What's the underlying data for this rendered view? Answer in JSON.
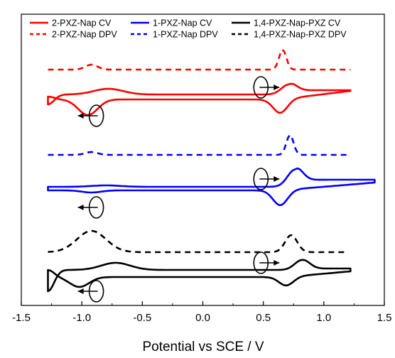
{
  "chart_data": {
    "type": "line",
    "title": "",
    "xlabel": "Potential vs SCE / V",
    "ylabel": "",
    "xlim": [
      -1.5,
      1.5
    ],
    "x_ticks": [
      "-1.5",
      "-1.0",
      "-0.5",
      "0.0",
      "0.5",
      "1.0",
      "1.5"
    ],
    "grid": false,
    "legend_position": "top",
    "y_axis_values_shown": false,
    "series": [
      {
        "name": "2-PXZ-Nap CV",
        "color": "#ff0000",
        "style": "solid",
        "x_range": [
          -1.28,
          1.22
        ],
        "features": {
          "oxidation_peak_x": 0.71,
          "reduction_peak_x": 0.64,
          "cathodic_peak_x": -0.95,
          "anodic_return_peak_x": -0.78
        }
      },
      {
        "name": "2-PXZ-Nap DPV",
        "color": "#ff0000",
        "style": "dashed",
        "x_range": [
          -1.28,
          1.22
        ],
        "features": {
          "peak_x": [
            -0.92,
            0.66
          ]
        }
      },
      {
        "name": "1-PXZ-Nap CV",
        "color": "#0000ff",
        "style": "solid",
        "x_range": [
          -1.28,
          1.42
        ],
        "features": {
          "oxidation_peak_x": 0.76,
          "reduction_peak_x": 0.64,
          "cathodic_peak_x": -0.92
        }
      },
      {
        "name": "1-PXZ-Nap DPV",
        "color": "#0000ff",
        "style": "dashed",
        "x_range": [
          -1.28,
          1.22
        ],
        "features": {
          "peak_x": [
            -0.92,
            0.72
          ]
        }
      },
      {
        "name": "1,4-PXZ-Nap-PXZ CV",
        "color": "#000000",
        "style": "solid",
        "x_range": [
          -1.28,
          1.22
        ],
        "features": {
          "oxidation_peak_x": 0.82,
          "reduction_peak_x": 0.69,
          "cathodic_peak_x": -1.02,
          "anodic_return_peak_x": -0.72
        }
      },
      {
        "name": "1,4-PXZ-Nap-PXZ DPV",
        "color": "#000000",
        "style": "dashed",
        "x_range": [
          -1.28,
          1.18
        ],
        "features": {
          "peak_x": [
            -0.92,
            0.73
          ]
        }
      }
    ],
    "annotations": [
      {
        "type": "scan-direction-arrow",
        "series": "2-PXZ-Nap CV",
        "direction": "right",
        "x": 0.48
      },
      {
        "type": "scan-direction-arrow",
        "series": "2-PXZ-Nap CV",
        "direction": "left",
        "x": -0.88
      },
      {
        "type": "scan-direction-arrow",
        "series": "1-PXZ-Nap CV",
        "direction": "right",
        "x": 0.48
      },
      {
        "type": "scan-direction-arrow",
        "series": "1-PXZ-Nap CV",
        "direction": "left",
        "x": -0.88
      },
      {
        "type": "scan-direction-arrow",
        "series": "1,4-PXZ-Nap-PXZ CV",
        "direction": "right",
        "x": 0.48
      },
      {
        "type": "scan-direction-arrow",
        "series": "1,4-PXZ-Nap-PXZ CV",
        "direction": "left",
        "x": -0.88
      }
    ]
  }
}
